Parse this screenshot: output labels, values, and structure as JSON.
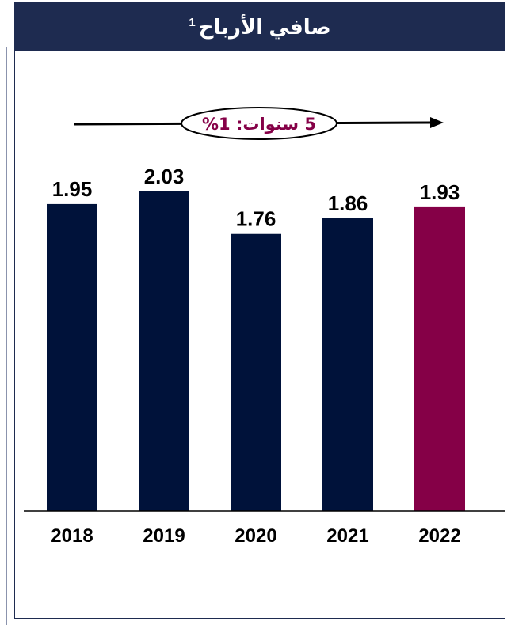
{
  "title": "صافي الأرباح",
  "title_superscript": "1",
  "cagr_label": "5 سنوات: 1%",
  "colors": {
    "header": "#1e2b50",
    "bar": "#00123a",
    "highlight_bar": "#850047",
    "cagr_text": "#850047"
  },
  "chart_data": {
    "type": "bar",
    "title": "صافي الأرباح",
    "categories": [
      "2018",
      "2019",
      "2020",
      "2021",
      "2022"
    ],
    "values": [
      1.95,
      2.03,
      1.76,
      1.86,
      1.93
    ],
    "value_labels": [
      "1.95",
      "2.03",
      "1.76",
      "1.86",
      "1.93"
    ],
    "highlight_index": 4,
    "ylim": [
      0,
      2.03
    ],
    "grid": false,
    "annotation": "5 سنوات: 1%"
  }
}
